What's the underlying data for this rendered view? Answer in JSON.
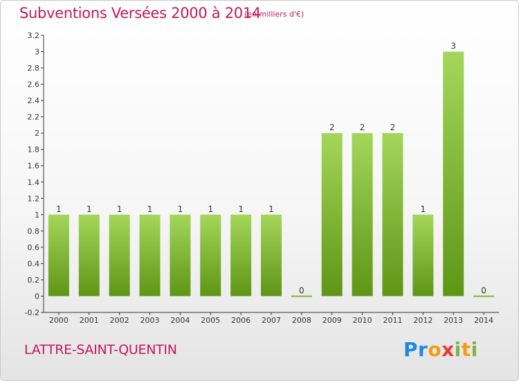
{
  "header": {
    "title": "Subventions Versées 2000 à 2014",
    "unit_note": "(en milliers d'€)"
  },
  "footer": {
    "commune": "LATTRE-SAINT-QUENTIN",
    "logo_text": "Proxiti",
    "logo_colors": [
      "#1e88e5",
      "#f39c12",
      "#7cb342",
      "#e53935"
    ]
  },
  "colors": {
    "title": "#c2185b",
    "bar_light": "#a4d65a",
    "bar_dark": "#5e9616",
    "axis": "#333333"
  },
  "chart_data": {
    "type": "bar",
    "categories": [
      "2000",
      "2001",
      "2002",
      "2003",
      "2004",
      "2005",
      "2006",
      "2007",
      "2008",
      "2009",
      "2010",
      "2011",
      "2012",
      "2013",
      "2014"
    ],
    "values": [
      1,
      1,
      1,
      1,
      1,
      1,
      1,
      1,
      0,
      2,
      2,
      2,
      1,
      3,
      0
    ],
    "data_labels": [
      "1",
      "1",
      "1",
      "1",
      "1",
      "1",
      "1",
      "1",
      "0",
      "2",
      "2",
      "2",
      "1",
      "3",
      "0"
    ],
    "ylim": [
      -0.2,
      3.2
    ],
    "yticks": [
      -0.2,
      0,
      0.2,
      0.4,
      0.6,
      0.8,
      1,
      1.2,
      1.4,
      1.6,
      1.8,
      2,
      2.2,
      2.4,
      2.6,
      2.8,
      3,
      3.2
    ],
    "ytick_labels": [
      "-0.2",
      "0",
      "0.2",
      "0.4",
      "0.6",
      "0.8",
      "1",
      "1.2",
      "1.4",
      "1.6",
      "1.8",
      "2",
      "2.2",
      "2.4",
      "2.6",
      "2.8",
      "3",
      "3.2"
    ],
    "grid": false
  }
}
